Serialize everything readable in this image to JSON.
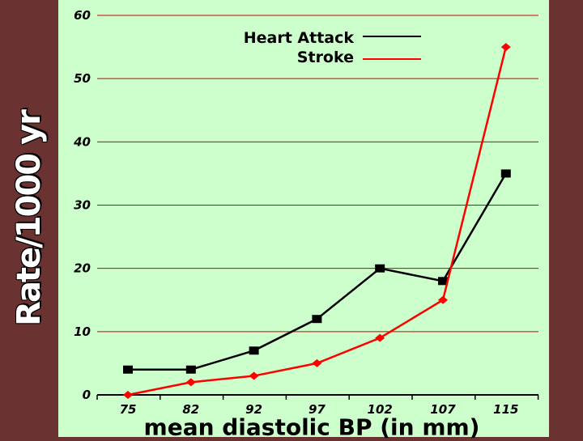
{
  "chart_data": {
    "type": "line",
    "title": "",
    "xlabel": "mean diastolic BP (in mm)",
    "ylabel": "Rate/1000 yr",
    "categories": [
      "75",
      "82",
      "92",
      "97",
      "102",
      "107",
      "115"
    ],
    "ylim": [
      0,
      60
    ],
    "yticks": [
      "0",
      "10",
      "20",
      "30",
      "40",
      "50",
      "60"
    ],
    "grid": true,
    "legend_position": "top-center",
    "series": [
      {
        "name": "Heart Attack",
        "values": [
          4,
          4,
          7,
          12,
          20,
          18,
          35
        ],
        "color": "#000000",
        "marker": "square"
      },
      {
        "name": "Stroke",
        "values": [
          0,
          2,
          3,
          5,
          9,
          15,
          55
        ],
        "color": "#ff0000",
        "marker": "diamond"
      }
    ]
  },
  "colors": {
    "background": "#6b3232",
    "plot_background": "#ccffcc",
    "gridline": "#cc0000",
    "ylabel_text": "#ffffff"
  }
}
